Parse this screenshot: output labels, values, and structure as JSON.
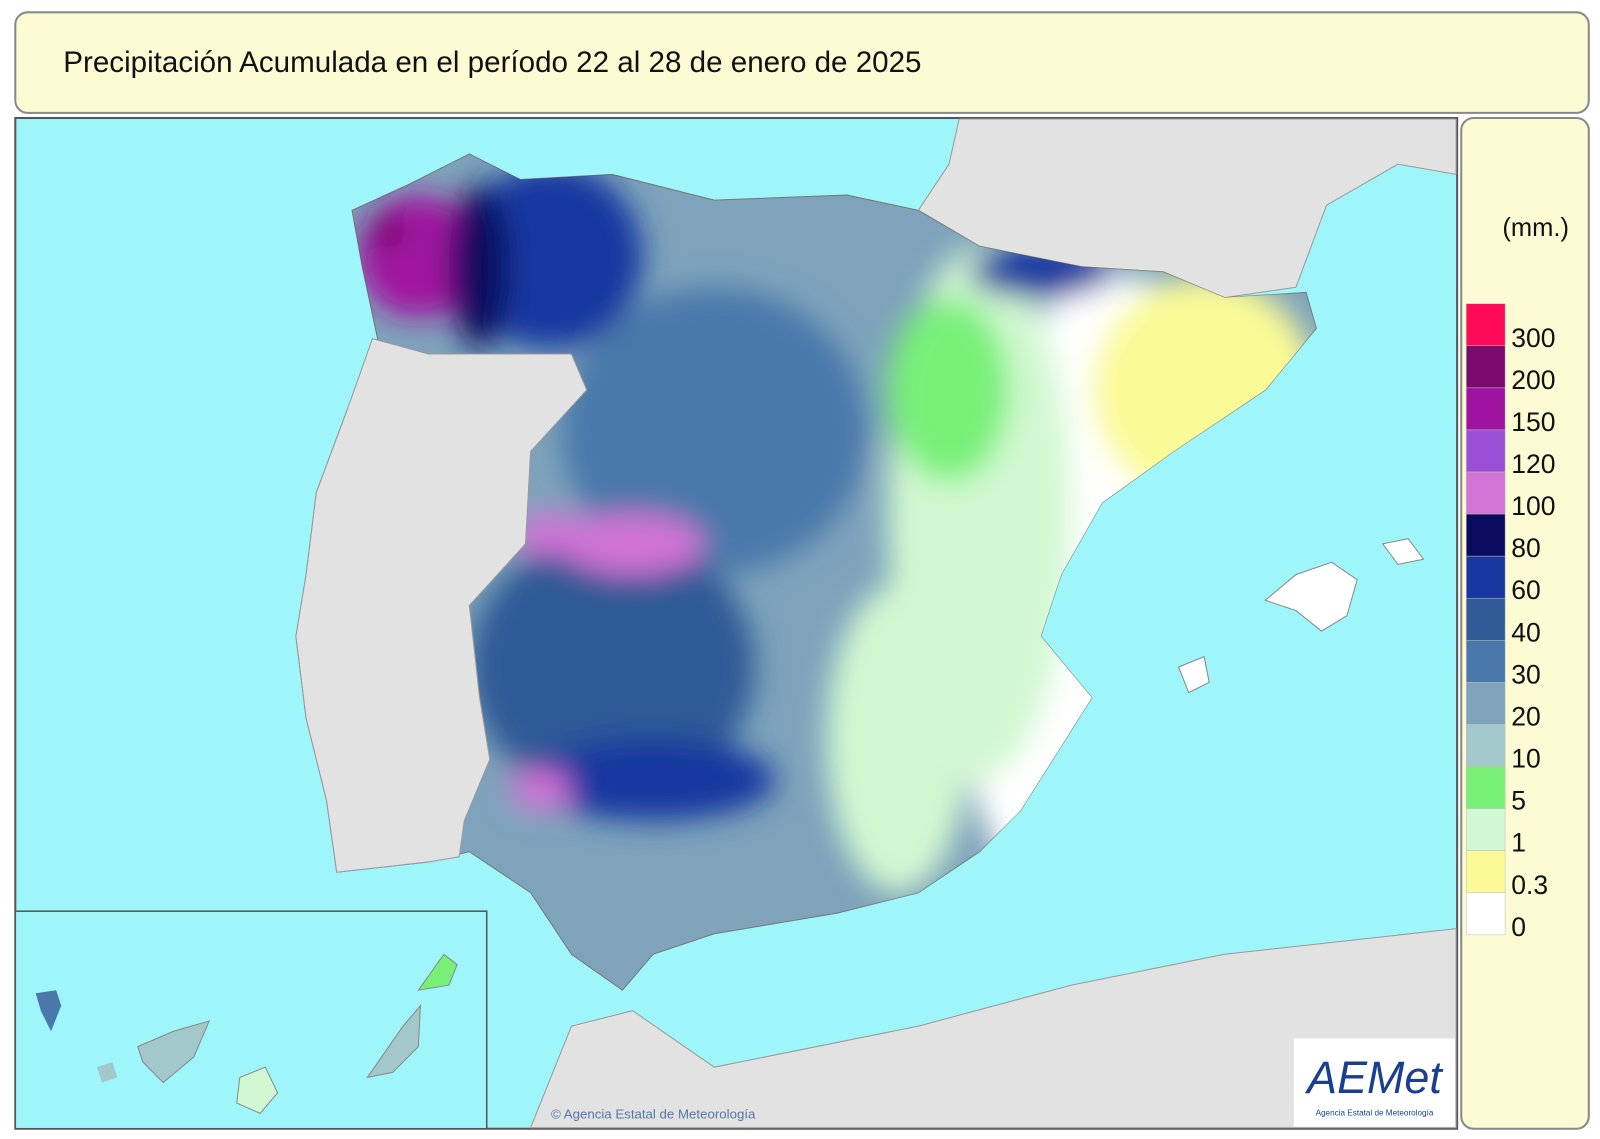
{
  "header": {
    "title": "Precipitación Acumulada en el período 22 al 28 de enero de 2025"
  },
  "legend": {
    "unit": "(mm.)",
    "levels": [
      {
        "value": 300,
        "color": "#ff0a5a"
      },
      {
        "value": 200,
        "color": "#7a0a6e"
      },
      {
        "value": 150,
        "color": "#a012a0"
      },
      {
        "value": 120,
        "color": "#9b4fd6"
      },
      {
        "value": 100,
        "color": "#d273d6"
      },
      {
        "value": 80,
        "color": "#0a0a5e"
      },
      {
        "value": 60,
        "color": "#1937a0"
      },
      {
        "value": 40,
        "color": "#2f5a96"
      },
      {
        "value": 30,
        "color": "#4a78aa"
      },
      {
        "value": 20,
        "color": "#7ea3bb"
      },
      {
        "value": 10,
        "color": "#a3c8cc"
      },
      {
        "value": 5,
        "color": "#78f078"
      },
      {
        "value": 1,
        "color": "#d2f8d2"
      },
      {
        "value": 0.3,
        "color": "#fafa96"
      },
      {
        "value": 0,
        "color": "#ffffff"
      }
    ]
  },
  "footer": {
    "credit": "© Agencia Estatal de Meteorología",
    "logo": "AEMet",
    "logo_caption": "Agencia Estatal de Meteorología"
  }
}
